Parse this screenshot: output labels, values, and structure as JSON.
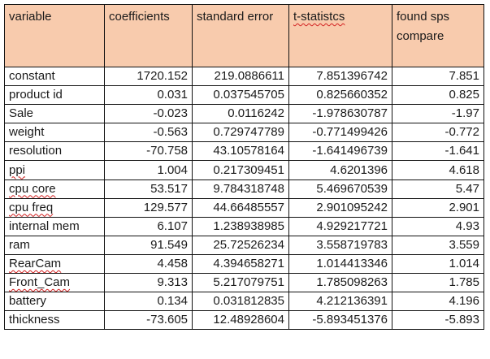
{
  "table": {
    "headers": [
      {
        "label": "variable"
      },
      {
        "label": "coefficients"
      },
      {
        "label": "standard error"
      },
      {
        "label": "t-statistcs"
      },
      {
        "label": "found sps compare"
      }
    ],
    "rows": [
      [
        "constant",
        "1720.152",
        "219.0886611",
        "7.851396742",
        "7.851"
      ],
      [
        "product id",
        "0.031",
        "0.037545705",
        "0.825660352",
        "0.825"
      ],
      [
        "Sale",
        "-0.023",
        "0.0116242",
        "-1.978630787",
        "-1.97"
      ],
      [
        "weight",
        "-0.563",
        "0.729747789",
        "-0.771499426",
        "-0.772"
      ],
      [
        "resolution",
        "-70.758",
        "43.10578164",
        "-1.641496739",
        "-1.641"
      ],
      [
        "ppi",
        "1.004",
        "0.217309451",
        "4.6201396",
        "4.618"
      ],
      [
        "cpu core",
        "53.517",
        "9.784318748",
        "5.469670539",
        "5.47"
      ],
      [
        "cpu freq",
        "129.577",
        "44.66485557",
        "2.901095242",
        "2.901"
      ],
      [
        "internal mem",
        "6.107",
        "1.238938985",
        "4.929217721",
        "4.93"
      ],
      [
        "ram",
        "91.549",
        "25.72526234",
        "3.558719783",
        "3.559"
      ],
      [
        "RearCam",
        "4.458",
        "4.394658271",
        "1.014413346",
        "1.014"
      ],
      [
        "Front_Cam",
        "9.313",
        "5.217079751",
        "1.785098263",
        "1.785"
      ],
      [
        "battery",
        "0.134",
        "0.031812835",
        "4.212136391",
        "4.196"
      ],
      [
        "thickness",
        "-73.605",
        "12.48928604",
        "-5.893451376",
        "-5.893"
      ]
    ]
  },
  "colors": {
    "header_fill": "#f8cbad",
    "border": "#111111",
    "spellcheck_underline": "#d21f1f"
  }
}
